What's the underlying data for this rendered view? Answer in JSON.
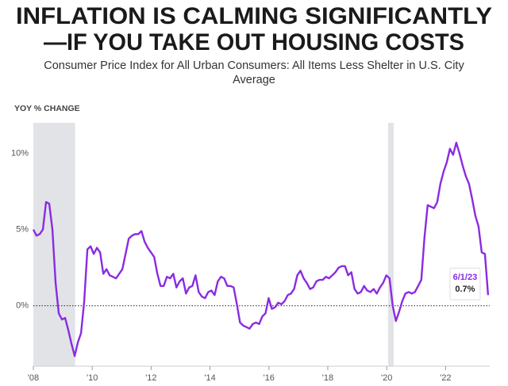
{
  "chart_data": {
    "type": "line",
    "title": [
      "INFLATION IS CALMING SIGNIFICANTLY",
      "—IF YOU TAKE OUT HOUSING COSTS"
    ],
    "subtitle": [
      "Consumer Price Index for All Urban Consumers: All Items Less Shelter in U.S. City",
      "Average"
    ],
    "y_label": "YOY % CHANGE",
    "xlim": [
      2008,
      2023.5
    ],
    "xticks": [
      {
        "value": 2008,
        "label": "'08"
      },
      {
        "value": 2010,
        "label": "'10"
      },
      {
        "value": 2012,
        "label": "'12"
      },
      {
        "value": 2014,
        "label": "'14"
      },
      {
        "value": 2016,
        "label": "'16"
      },
      {
        "value": 2018,
        "label": "'18"
      },
      {
        "value": 2020,
        "label": "'20"
      },
      {
        "value": 2022,
        "label": "'22"
      }
    ],
    "ylim": [
      -3.6,
      12
    ],
    "yticks": [
      {
        "value": 0,
        "label": "0%"
      },
      {
        "value": 5,
        "label": "5%"
      },
      {
        "value": 10,
        "label": "10%"
      }
    ],
    "baseline": 0,
    "shaded_ranges": [
      [
        2008,
        2009.42
      ],
      [
        2020.05,
        2020.24
      ]
    ],
    "x": [
      2008,
      2008.108,
      2008.216,
      2008.324,
      2008.432,
      2008.54,
      2008.648,
      2008.756,
      2008.864,
      2008.972,
      2009.08,
      2009.188,
      2009.296,
      2009.404,
      2009.512,
      2009.62,
      2009.728,
      2009.836,
      2009.944,
      2010.052,
      2010.16,
      2010.268,
      2010.376,
      2010.484,
      2010.592,
      2010.7,
      2010.808,
      2010.916,
      2011.024,
      2011.132,
      2011.24,
      2011.348,
      2011.456,
      2011.564,
      2011.672,
      2011.78,
      2011.888,
      2011.996,
      2012.104,
      2012.212,
      2012.32,
      2012.428,
      2012.536,
      2012.644,
      2012.752,
      2012.86,
      2012.968,
      2013.076,
      2013.184,
      2013.292,
      2013.4,
      2013.508,
      2013.616,
      2013.724,
      2013.832,
      2013.94,
      2014.048,
      2014.156,
      2014.264,
      2014.372,
      2014.48,
      2014.588,
      2014.696,
      2014.804,
      2014.912,
      2015.02,
      2015.128,
      2015.236,
      2015.344,
      2015.452,
      2015.56,
      2015.668,
      2015.776,
      2015.884,
      2015.992,
      2016.1,
      2016.208,
      2016.316,
      2016.424,
      2016.532,
      2016.64,
      2016.748,
      2016.856,
      2016.964,
      2017.072,
      2017.18,
      2017.288,
      2017.396,
      2017.504,
      2017.612,
      2017.72,
      2017.828,
      2017.936,
      2018.044,
      2018.152,
      2018.26,
      2018.368,
      2018.476,
      2018.584,
      2018.692,
      2018.8,
      2018.908,
      2019.016,
      2019.124,
      2019.232,
      2019.34,
      2019.448,
      2019.556,
      2019.664,
      2019.772,
      2019.88,
      2019.988,
      2020.096,
      2020.204,
      2020.312,
      2020.42,
      2020.528,
      2020.636,
      2020.744,
      2020.852,
      2020.96,
      2021.068,
      2021.176,
      2021.284,
      2021.392,
      2021.5,
      2021.608,
      2021.716,
      2021.824,
      2021.932,
      2022.04,
      2022.148,
      2022.256,
      2022.364,
      2022.472,
      2022.58,
      2022.688,
      2022.796,
      2022.904,
      2023.012,
      2023.12,
      2023.228,
      2023.336,
      2023.444
    ],
    "series": [
      {
        "color": "#8a2be2",
        "values": [
          5.0,
          4.6,
          4.7,
          5.0,
          6.8,
          6.7,
          5.0,
          1.5,
          -0.5,
          -0.9,
          -0.8,
          -1.6,
          -2.5,
          -3.3,
          -2.4,
          -1.8,
          0.3,
          3.7,
          3.9,
          3.4,
          3.8,
          3.5,
          2.1,
          2.4,
          2.0,
          1.9,
          1.8,
          2.1,
          2.4,
          3.4,
          4.4,
          4.6,
          4.7,
          4.7,
          4.9,
          4.2,
          3.8,
          3.5,
          3.2,
          2.1,
          1.3,
          1.3,
          1.9,
          1.8,
          2.1,
          1.2,
          1.6,
          1.8,
          0.8,
          1.2,
          1.3,
          2.0,
          0.9,
          0.6,
          0.5,
          0.9,
          1.0,
          0.7,
          1.6,
          1.9,
          1.8,
          1.3,
          1.3,
          1.2,
          0.1,
          -1.1,
          -1.3,
          -1.4,
          -1.5,
          -1.2,
          -1.1,
          -1.2,
          -0.7,
          -0.5,
          0.5,
          -0.2,
          -0.1,
          0.2,
          0.1,
          0.3,
          0.7,
          0.8,
          1.1,
          2.0,
          2.3,
          1.8,
          1.5,
          1.1,
          1.2,
          1.6,
          1.7,
          1.7,
          1.9,
          1.8,
          2.0,
          2.2,
          2.5,
          2.6,
          2.6,
          2.0,
          2.2,
          1.1,
          0.8,
          0.9,
          1.3,
          1.0,
          0.9,
          1.1,
          0.8,
          1.2,
          1.5,
          2.0,
          1.8,
          0.0,
          -1.0,
          -0.4,
          0.3,
          0.8,
          0.9,
          0.8,
          0.9,
          1.3,
          1.7,
          4.5,
          6.6,
          6.5,
          6.4,
          6.8,
          8.0,
          8.8,
          9.4,
          10.3,
          9.9,
          10.7,
          10.0,
          9.2,
          8.5,
          8.0,
          7.0,
          5.9,
          5.2,
          3.5,
          3.4,
          0.7
        ]
      }
    ],
    "annotation": {
      "date": "6/1/23",
      "value": 0.7,
      "value_label": "0.7%"
    }
  }
}
